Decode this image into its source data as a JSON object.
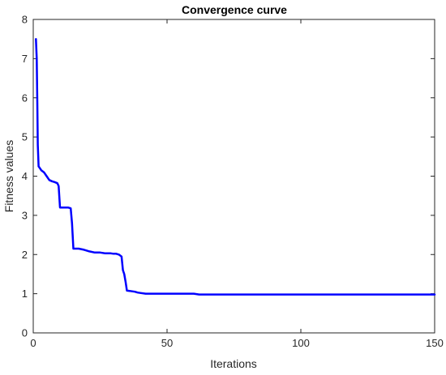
{
  "chart_data": {
    "type": "line",
    "title": "Convergence curve",
    "xlabel": "Iterations",
    "ylabel": "Fitness values",
    "xlim": [
      0,
      150
    ],
    "ylim": [
      0,
      8
    ],
    "x_ticks": [
      "0",
      "50",
      "100",
      "150"
    ],
    "y_ticks": [
      "0",
      "1",
      "2",
      "3",
      "4",
      "5",
      "6",
      "7",
      "8"
    ],
    "grid": false,
    "series": [
      {
        "color": "#0000ff",
        "x": [
          1,
          1.3,
          1.5,
          1.7,
          2,
          2.5,
          3,
          4,
          5,
          6,
          7,
          8,
          9,
          9.5,
          10,
          11,
          12,
          13,
          14,
          14.5,
          15,
          17,
          19,
          21,
          23,
          25,
          27,
          29,
          30,
          31,
          32,
          33,
          33.5,
          34,
          34.5,
          35,
          36,
          37,
          38,
          39,
          40,
          42,
          45,
          50,
          55,
          60,
          62,
          65,
          70,
          80,
          100,
          120,
          140,
          150
        ],
        "values": [
          7.5,
          7.0,
          5.9,
          4.8,
          4.25,
          4.2,
          4.15,
          4.1,
          4.0,
          3.9,
          3.87,
          3.85,
          3.82,
          3.75,
          3.2,
          3.2,
          3.2,
          3.2,
          3.18,
          2.8,
          2.15,
          2.15,
          2.12,
          2.08,
          2.05,
          2.05,
          2.03,
          2.03,
          2.02,
          2.02,
          2.0,
          1.95,
          1.6,
          1.5,
          1.3,
          1.08,
          1.07,
          1.06,
          1.05,
          1.03,
          1.02,
          1.0,
          1.0,
          1.0,
          1.0,
          1.0,
          0.98,
          0.98,
          0.98,
          0.98,
          0.98,
          0.98,
          0.98,
          0.98
        ]
      }
    ]
  }
}
